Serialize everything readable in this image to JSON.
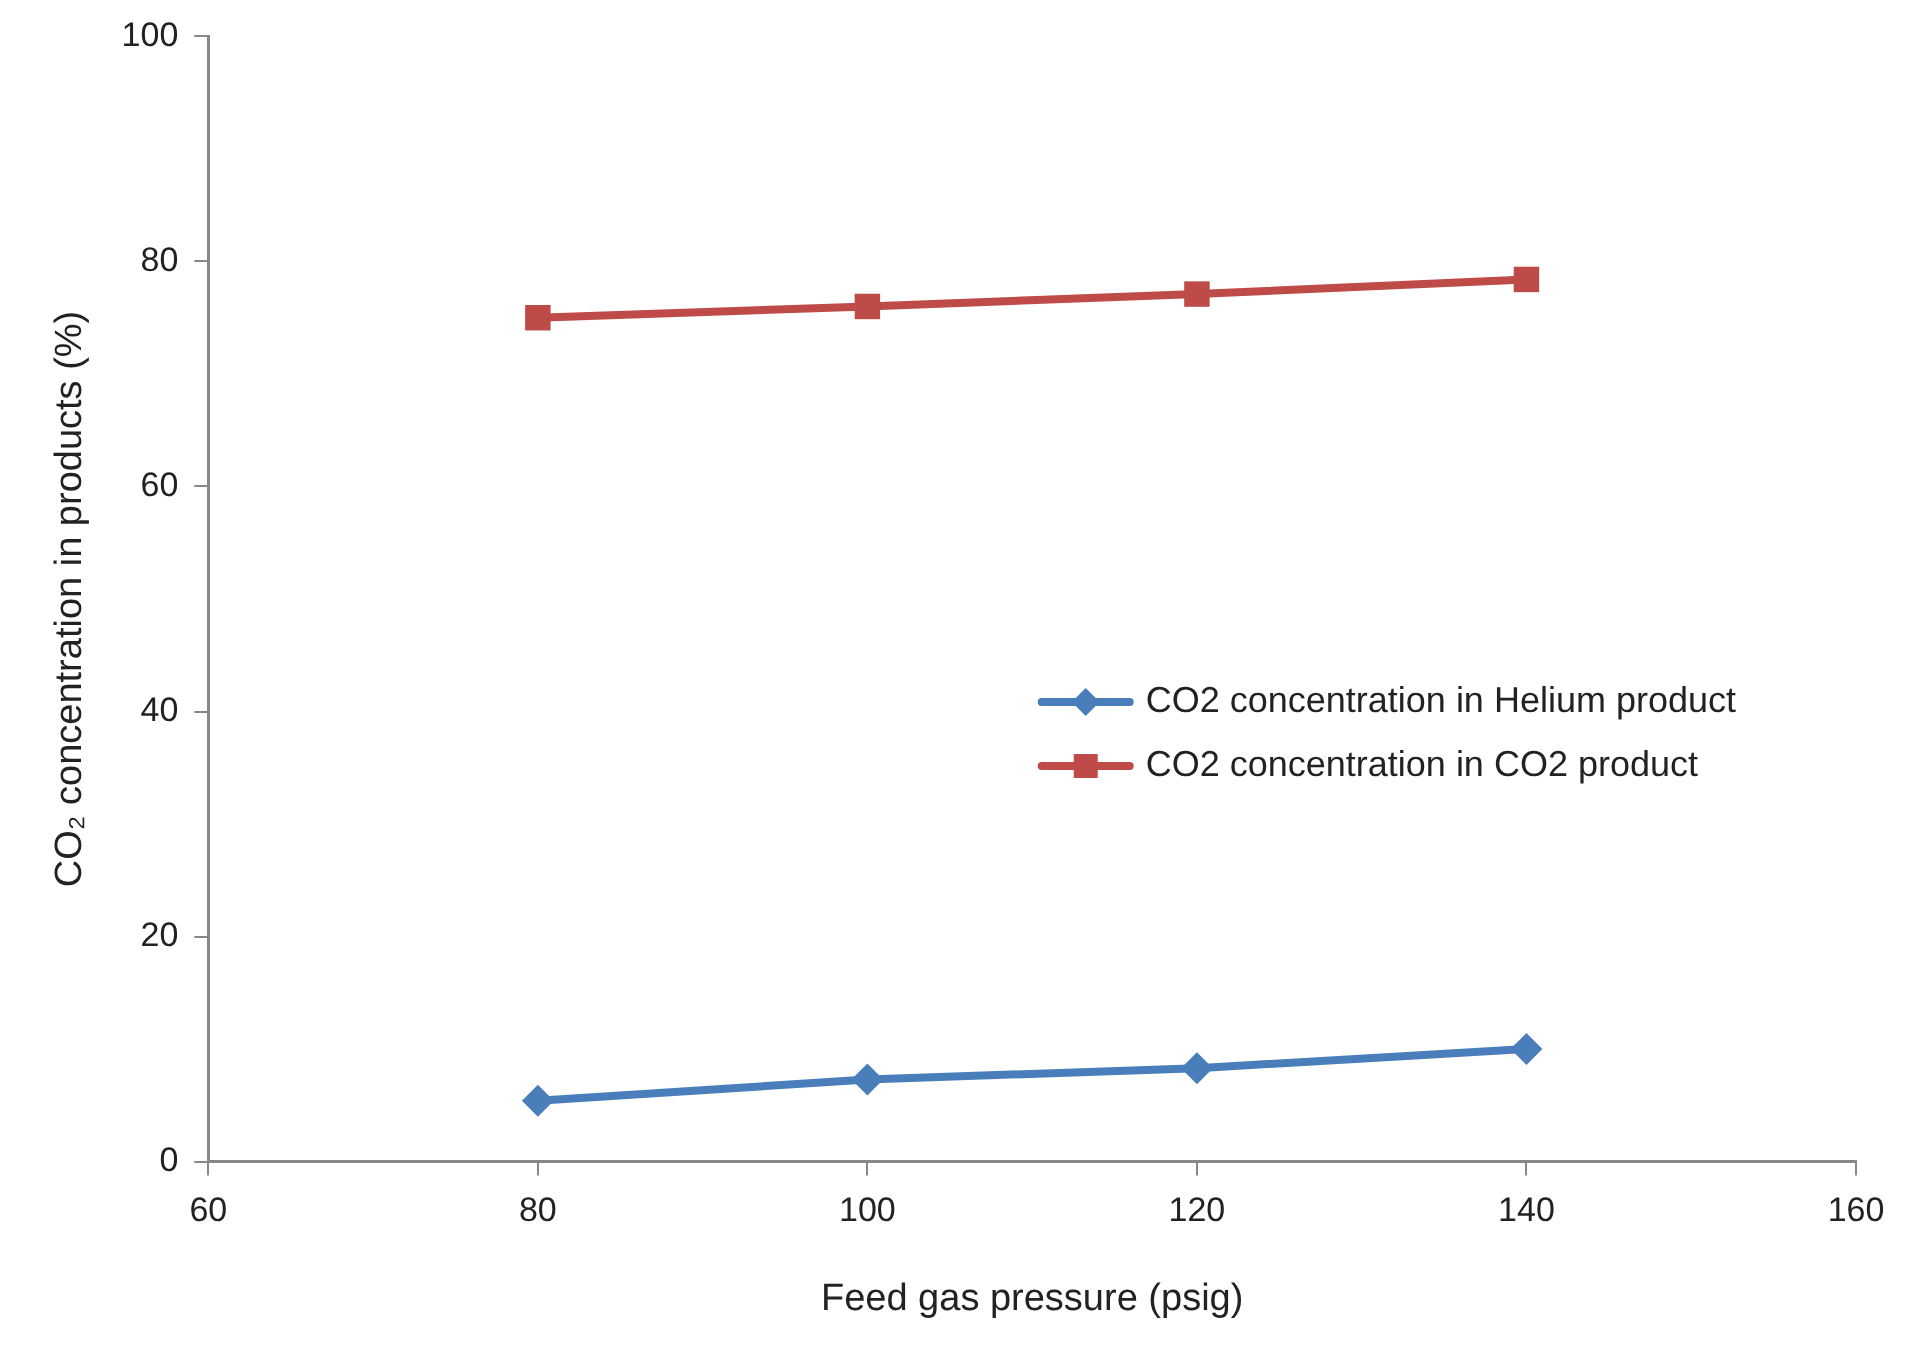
{
  "chart_data": {
    "type": "line",
    "xlabel": "Feed gas pressure (psig)",
    "ylabel": "CO₂ concentration in products (%)",
    "x": [
      80,
      100,
      120,
      140
    ],
    "series": [
      {
        "name": "CO2 concentration in Helium product",
        "color": "#4a7ebb",
        "marker": "diamond",
        "values": [
          5.4,
          7.3,
          8.3,
          10.0
        ]
      },
      {
        "name": "CO2 concentration in CO2 product",
        "color": "#be4b48",
        "marker": "square",
        "values": [
          75.0,
          76.0,
          77.1,
          78.4
        ]
      }
    ],
    "xlim": [
      60,
      160
    ],
    "xticks": [
      60,
      80,
      100,
      120,
      140,
      160
    ],
    "ylim": [
      0,
      100
    ],
    "yticks": [
      0,
      20,
      40,
      60,
      80,
      100
    ],
    "grid": false,
    "legend": "center right",
    "line_style": "solid"
  }
}
